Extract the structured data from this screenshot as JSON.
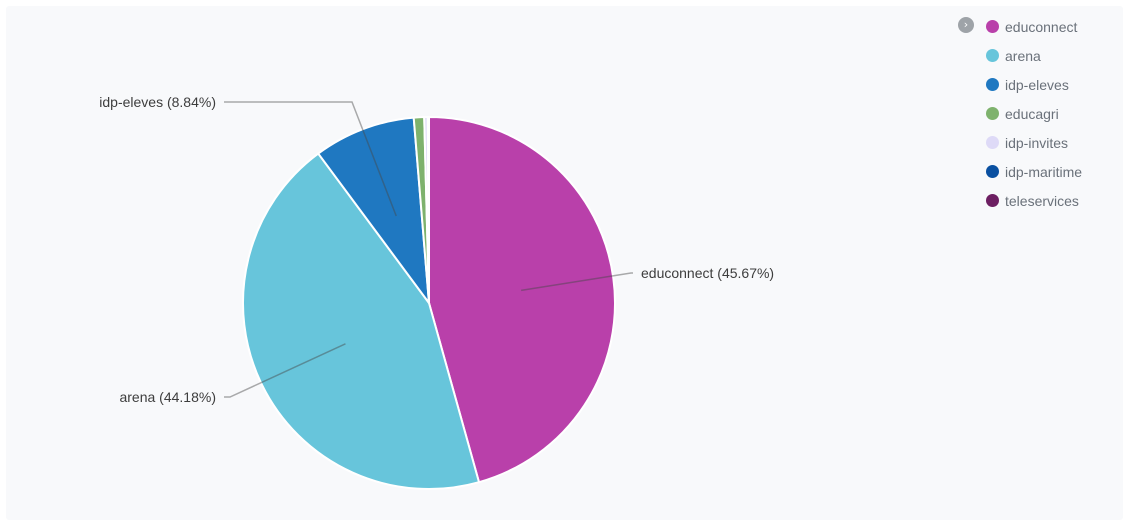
{
  "chart_data": {
    "type": "pie",
    "title": "",
    "slices": [
      {
        "name": "educonnect",
        "value": 45.67,
        "color": "#b940aa",
        "label": "educonnect (45.67%)"
      },
      {
        "name": "arena",
        "value": 44.18,
        "color": "#67c5db",
        "label": "arena (44.18%)"
      },
      {
        "name": "idp-eleves",
        "value": 8.84,
        "color": "#1f78c1",
        "label": "idp-eleves (8.84%)"
      },
      {
        "name": "educagri",
        "value": 0.9,
        "color": "#7eb26d",
        "label": ""
      },
      {
        "name": "idp-invites",
        "value": 0.3,
        "color": "#dedaf7",
        "label": ""
      },
      {
        "name": "idp-maritime",
        "value": 0.08,
        "color": "#0a50a1",
        "label": ""
      },
      {
        "name": "teleservices",
        "value": 0.03,
        "color": "#6d1f62",
        "label": ""
      }
    ],
    "legend_position": "top-right"
  },
  "legend": {
    "toggle_glyph": "›",
    "items": [
      {
        "label": "educonnect",
        "color": "#b940aa"
      },
      {
        "label": "arena",
        "color": "#67c5db"
      },
      {
        "label": "idp-eleves",
        "color": "#1f78c1"
      },
      {
        "label": "educagri",
        "color": "#7eb26d"
      },
      {
        "label": "idp-invites",
        "color": "#dedaf7"
      },
      {
        "label": "idp-maritime",
        "color": "#0a50a1"
      },
      {
        "label": "teleservices",
        "color": "#6d1f62"
      }
    ]
  }
}
